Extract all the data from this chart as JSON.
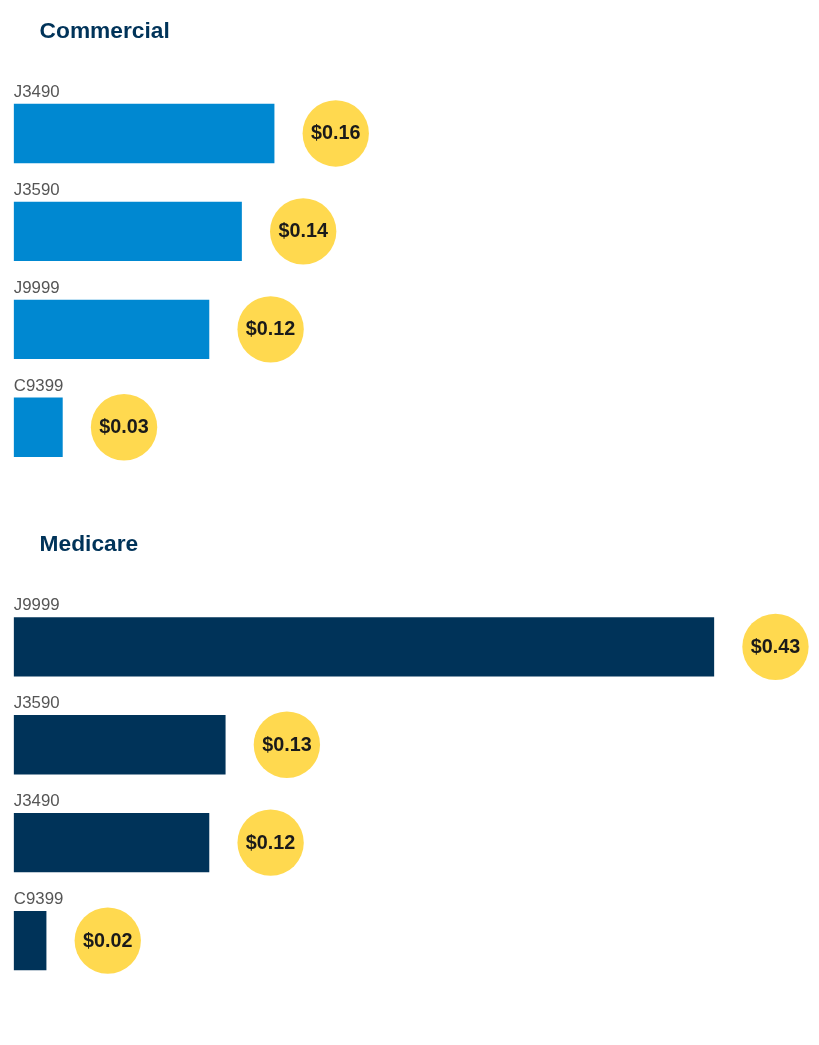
{
  "chart_data": [
    {
      "type": "bar",
      "orientation": "horizontal",
      "title": "Commercial",
      "categories": [
        "J3490",
        "J3590",
        "J9999",
        "C9399"
      ],
      "values": [
        0.16,
        0.14,
        0.12,
        0.03
      ],
      "value_labels": [
        "$0.16",
        "$0.14",
        "$0.12",
        "$0.03"
      ],
      "color": "#0088d1",
      "tick_labels": "y"
    },
    {
      "type": "bar",
      "orientation": "horizontal",
      "title": "Medicare",
      "categories": [
        "J9999",
        "J3590",
        "J3490",
        "C9399"
      ],
      "values": [
        0.43,
        0.13,
        0.12,
        0.02
      ],
      "value_labels": [
        "$0.43",
        "$0.13",
        "$0.12",
        "$0.02"
      ],
      "color": "#003359",
      "tick_labels": "y"
    }
  ]
}
